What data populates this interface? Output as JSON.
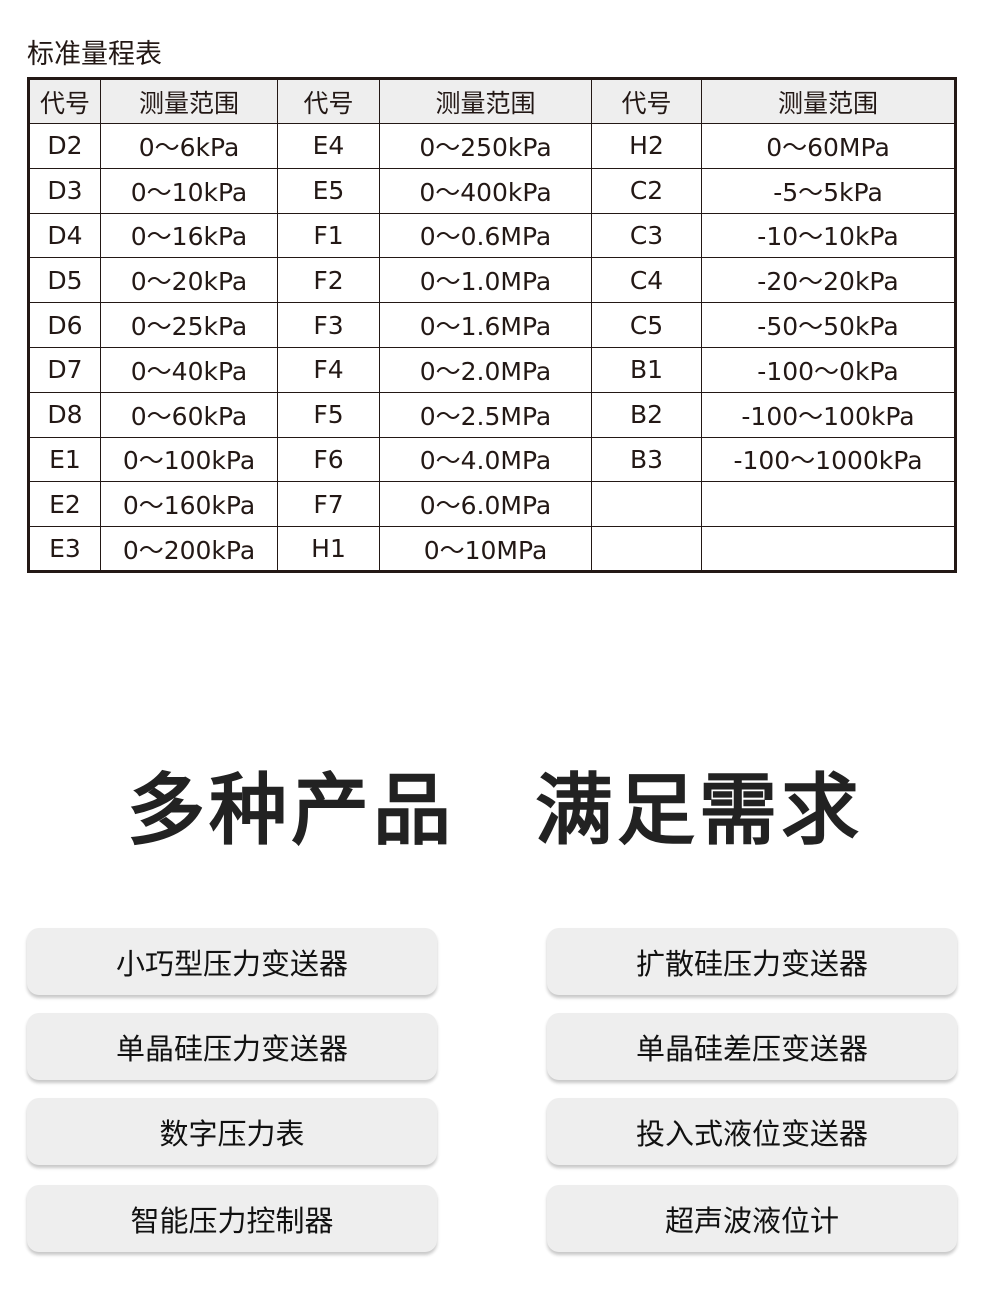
{
  "title": "标准量程表",
  "table": {
    "headers": [
      "代号",
      "测量范围",
      "代号",
      "测量范围",
      "代号",
      "测量范围"
    ],
    "rows": [
      [
        "D2",
        "0～6kPa",
        "E4",
        "0～250kPa",
        "H2",
        "0～60MPa"
      ],
      [
        "D3",
        "0～10kPa",
        "E5",
        "0～400kPa",
        "C2",
        "-5～5kPa"
      ],
      [
        "D4",
        "0～16kPa",
        "F1",
        "0～0.6MPa",
        "C3",
        "-10～10kPa"
      ],
      [
        "D5",
        "0～20kPa",
        "F2",
        "0～1.0MPa",
        "C4",
        "-20～20kPa"
      ],
      [
        "D6",
        "0～25kPa",
        "F3",
        "0～1.6MPa",
        "C5",
        "-50～50kPa"
      ],
      [
        "D7",
        "0～40kPa",
        "F4",
        "0～2.0MPa",
        "B1",
        "-100～0kPa"
      ],
      [
        "D8",
        "0～60kPa",
        "F5",
        "0～2.5MPa",
        "B2",
        "-100～100kPa"
      ],
      [
        "E1",
        "0～100kPa",
        "F6",
        "0～4.0MPa",
        "B3",
        "-100～1000kPa"
      ],
      [
        "E2",
        "0～160kPa",
        "F7",
        "0～6.0MPa",
        "",
        ""
      ],
      [
        "E3",
        "0～200kPa",
        "H1",
        "0～10MPa",
        "",
        ""
      ]
    ]
  },
  "heading": {
    "left": "多种产品",
    "right": "满足需求"
  },
  "products": [
    "小巧型压力变送器",
    "扩散硅压力变送器",
    "单晶硅压力变送器",
    "单晶硅差压变送器",
    "数字压力表",
    "投入式液位变送器",
    "智能压力控制器",
    "超声波液位计"
  ]
}
